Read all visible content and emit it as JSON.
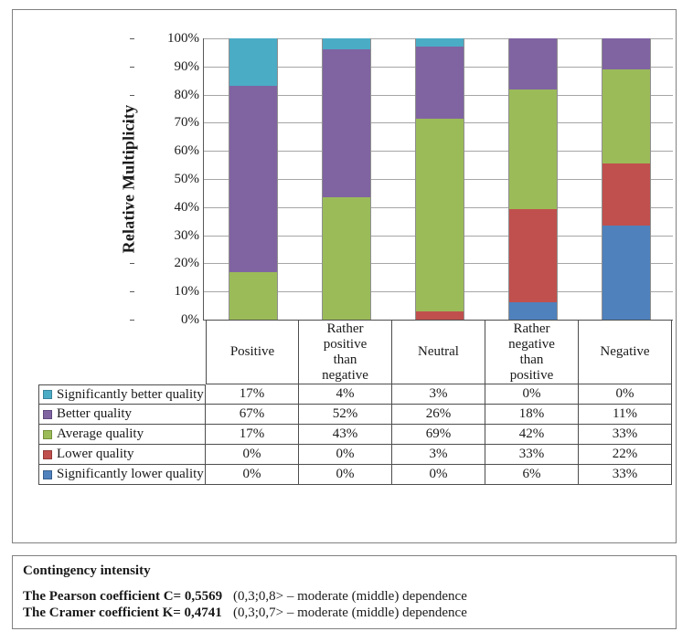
{
  "chart_data": {
    "type": "bar",
    "variant": "100-percent-stacked-column",
    "title": "",
    "xlabel": "",
    "ylabel": "Relative Multiplicity",
    "ylim": [
      0,
      100
    ],
    "ytick_step": 10,
    "ytick_suffix": "%",
    "grid": true,
    "legend_position": "data-table-left-column",
    "categories": [
      "Positive",
      "Rather positive than negative",
      "Neutral",
      "Rather negative than positive",
      "Negative"
    ],
    "categories_display": [
      "Positive",
      "Rather\npositive\nthan\nnegative",
      "Neutral",
      "Rather\nnegative\nthan\npositive",
      "Negative"
    ],
    "value_suffix": "%",
    "stack_order_top_to_bottom": [
      "Significantly better quality",
      "Better quality",
      "Average quality",
      "Lower quality",
      "Significantly lower quality"
    ],
    "series": [
      {
        "name": "Significantly better quality",
        "color": "#4BACC6",
        "border_color": "#39839A",
        "values": [
          17,
          4,
          3,
          0,
          0
        ]
      },
      {
        "name": "Better quality",
        "color": "#8064A2",
        "border_color": "#60497E",
        "values": [
          67,
          52,
          26,
          18,
          11
        ]
      },
      {
        "name": "Average quality",
        "color": "#9BBB59",
        "border_color": "#75913C",
        "values": [
          17,
          43,
          69,
          42,
          33
        ]
      },
      {
        "name": "Lower quality",
        "color": "#C0504D",
        "border_color": "#953B38",
        "values": [
          0,
          0,
          3,
          33,
          22
        ]
      },
      {
        "name": "Significantly lower quality",
        "color": "#4F81BD",
        "border_color": "#38608F",
        "values": [
          0,
          0,
          0,
          6,
          33
        ]
      }
    ]
  },
  "footer_box": {
    "title": "Contingency intensity",
    "lines": [
      {
        "label": "The Pearson coefficient C= 0,5569",
        "note": "(0,3;0,8> – moderate (middle) dependence"
      },
      {
        "label": "The Cramer coefficient K= 0,4741",
        "note": "(0,3;0,7> – moderate (middle) dependence"
      }
    ]
  },
  "colors": {
    "teal": "#4BACC6",
    "purple": "#8064A2",
    "green": "#9BBB59",
    "red": "#C0504D",
    "blue": "#4F81BD",
    "grid_line": "#a6a6a6",
    "axis_line": "#595959",
    "table_border": "#4d4d4d",
    "panel_border": "#808080",
    "bar_edge": "#8f8f8f"
  }
}
